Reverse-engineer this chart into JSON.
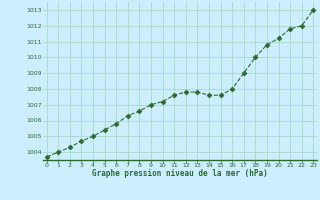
{
  "x": [
    0,
    1,
    2,
    3,
    4,
    5,
    6,
    7,
    8,
    9,
    10,
    11,
    12,
    13,
    14,
    15,
    16,
    17,
    18,
    19,
    20,
    21,
    22,
    23
  ],
  "y": [
    1003.7,
    1004.0,
    1004.3,
    1004.7,
    1005.0,
    1005.4,
    1005.8,
    1006.3,
    1006.6,
    1007.0,
    1007.2,
    1007.6,
    1007.8,
    1007.8,
    1007.6,
    1007.6,
    1008.0,
    1009.0,
    1010.0,
    1010.8,
    1011.2,
    1011.8,
    1012.0,
    1013.0
  ],
  "line_color": "#2d6a2d",
  "marker_color": "#2d6a2d",
  "bg_color": "#cceeff",
  "grid_color": "#aaddcc",
  "xlabel": "Graphe pression niveau de la mer (hPa)",
  "xlabel_color": "#2d6a2d",
  "tick_color": "#2d6a2d",
  "axis_line_color": "#2d6a2d",
  "ylim": [
    1003.5,
    1013.5
  ],
  "yticks": [
    1004,
    1005,
    1006,
    1007,
    1008,
    1009,
    1010,
    1011,
    1012,
    1013
  ],
  "xticks": [
    0,
    1,
    2,
    3,
    4,
    5,
    6,
    7,
    8,
    9,
    10,
    11,
    12,
    13,
    14,
    15,
    16,
    17,
    18,
    19,
    20,
    21,
    22,
    23
  ],
  "xlim": [
    -0.3,
    23.3
  ]
}
